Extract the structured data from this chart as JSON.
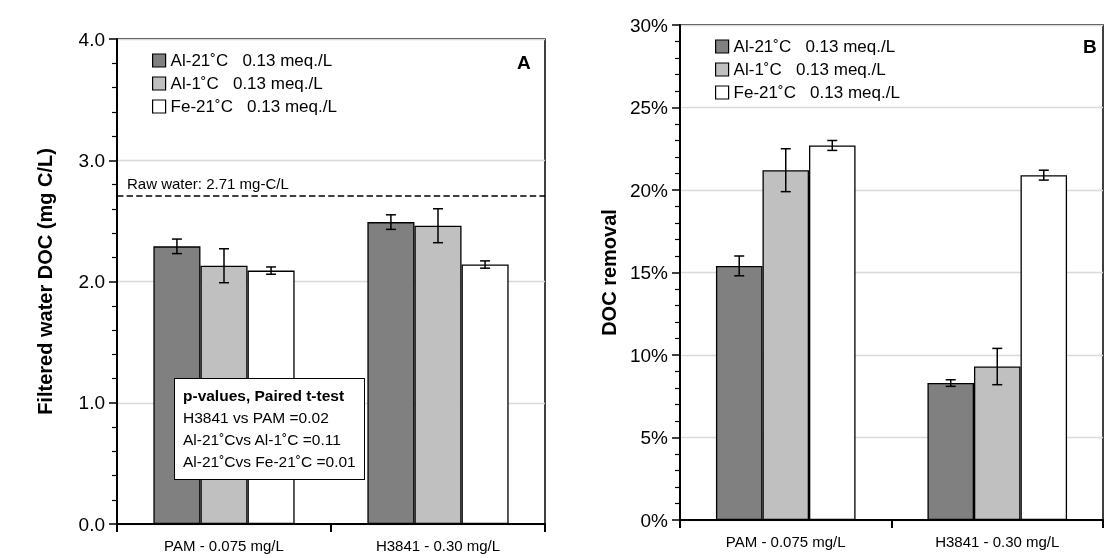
{
  "chart_data": [
    {
      "type": "bar",
      "ylabel": "Filtered water DOC (mg C/L)",
      "categories": [
        "PAM - 0.075 mg/L",
        "H3841 - 0.30 mg/L"
      ],
      "series": [
        {
          "name": "Al-21˚C   0.13 meq./L",
          "color": "#808080",
          "values": [
            2.29,
            2.49
          ],
          "errors": [
            0.06,
            0.06
          ]
        },
        {
          "name": "Al-1˚C   0.13 meq./L",
          "color": "#c0c0c0",
          "values": [
            2.13,
            2.46
          ],
          "errors": [
            0.14,
            0.14
          ]
        },
        {
          "name": "Fe-21˚C   0.13 meq./L",
          "color": "#ffffff",
          "values": [
            2.09,
            2.14
          ],
          "errors": [
            0.03,
            0.03
          ]
        }
      ],
      "ylim": [
        0,
        4
      ],
      "yticks": [
        {
          "value": 0,
          "label": "0.0"
        },
        {
          "value": 1,
          "label": "1.0"
        },
        {
          "value": 2,
          "label": "2.0"
        },
        {
          "value": 3,
          "label": "3.0"
        },
        {
          "value": 4,
          "label": "4.0"
        }
      ],
      "grid": "y",
      "legend": "top left",
      "ref_lines": [
        {
          "axis": "y",
          "value": 2.71,
          "label": "Raw water: 2.71 mg-C/L",
          "color": "#000000",
          "line_style": "dashed"
        }
      ],
      "annotations": [
        "A",
        "p-values, Paired t-test",
        "H3841 vs PAM =0.02",
        "Al-21˚Cvs Al-1˚C =0.11",
        "Al-21˚Cvs Fe-21˚C =0.01"
      ]
    },
    {
      "type": "bar",
      "ylabel": "DOC removal",
      "categories": [
        "PAM - 0.075 mg/L",
        "H3841 - 0.30 mg/L"
      ],
      "series": [
        {
          "name": "Al-21˚C   0.13 meq./L",
          "color": "#808080",
          "values": [
            15.4,
            8.3
          ],
          "errors": [
            0.6,
            0.2
          ]
        },
        {
          "name": "Al-1˚C   0.13 meq./L",
          "color": "#c0c0c0",
          "values": [
            21.2,
            9.3
          ],
          "errors": [
            1.3,
            1.1
          ]
        },
        {
          "name": "Fe-21˚C   0.13 meq./L",
          "color": "#ffffff",
          "values": [
            22.7,
            20.9
          ],
          "errors": [
            0.3,
            0.3
          ]
        }
      ],
      "ylim": [
        0,
        30
      ],
      "yticks": [
        {
          "value": 0,
          "label": "0%"
        },
        {
          "value": 5,
          "label": "5%"
        },
        {
          "value": 10,
          "label": "10%"
        },
        {
          "value": 15,
          "label": "15%"
        },
        {
          "value": 20,
          "label": "20%"
        },
        {
          "value": 25,
          "label": "25%"
        },
        {
          "value": 30,
          "label": "30%"
        }
      ],
      "grid": "y",
      "legend": "top left",
      "annotations": [
        "B"
      ]
    }
  ]
}
